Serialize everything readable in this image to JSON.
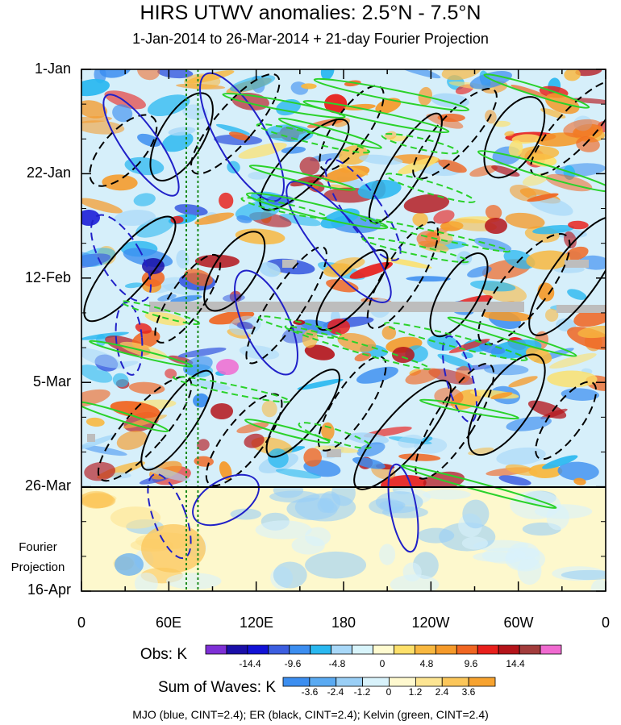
{
  "title": "HIRS UTWV anomalies: 2.5°N - 7.5°N",
  "subtitle": "1-Jan-2014 to 26-Mar-2014 + 21-day Fourier Projection",
  "fourier_label_line1": "Fourier",
  "fourier_label_line2": "Projection",
  "obs_colorbar": {
    "label": "Obs: K",
    "colors": [
      "#7e30d6",
      "#1a0fa8",
      "#1212d6",
      "#3c5ee0",
      "#3c8ef0",
      "#2ab8f0",
      "#a8d8f8",
      "#d8f4fb",
      "#fffbd0",
      "#fde06a",
      "#f8b840",
      "#f59a2a",
      "#f06622",
      "#e8201c",
      "#b4141a",
      "#a23c3c",
      "#f06ad0"
    ],
    "tick_labels": [
      "-14.4",
      "-9.6",
      "-4.8",
      "0",
      "4.8",
      "9.6",
      "14.4"
    ]
  },
  "sum_colorbar": {
    "label": "Sum of Waves: K",
    "colors": [
      "#3c8ef0",
      "#5aaaf2",
      "#9acff6",
      "#d8f2fb",
      "#fff9cf",
      "#fde592",
      "#fbc65a",
      "#f7a330"
    ],
    "tick_labels": [
      "-3.6",
      "-2.4",
      "-1.2",
      "0",
      "1.2",
      "2.4",
      "3.6"
    ]
  },
  "footer": "MJO (blue, CINT=2.4); ER (black, CINT=2.4); Kelvin (green, CINT=2.4)",
  "chart_data": {
    "type": "heatmap",
    "title": "HIRS UTWV anomalies: 2.5°N - 7.5°N",
    "subtitle": "1-Jan-2014 to 26-Mar-2014 + 21-day Fourier Projection",
    "x_axis": {
      "ticks": [
        "0",
        "60E",
        "120E",
        "180",
        "120W",
        "60W",
        "0"
      ],
      "range_deg": [
        0,
        360
      ]
    },
    "y_axis": {
      "ticks": [
        "1-Jan",
        "22-Jan",
        "12-Feb",
        "5-Mar",
        "26-Mar",
        "16-Apr"
      ],
      "range": [
        "1-Jan-2014",
        "16-Apr-2014"
      ]
    },
    "observed_period": [
      "1-Jan-2014",
      "26-Mar-2014"
    ],
    "projection_period": [
      "26-Mar-2014",
      "16-Apr-2014"
    ],
    "reference_lines_deg": [
      72,
      80
    ],
    "series": [
      {
        "name": "MJO",
        "color": "#2020c8",
        "cint": 2.4
      },
      {
        "name": "ER",
        "color": "#000000",
        "cint": 2.4
      },
      {
        "name": "Kelvin",
        "color": "#2ad22a",
        "cint": 2.4
      }
    ],
    "units": "K"
  }
}
